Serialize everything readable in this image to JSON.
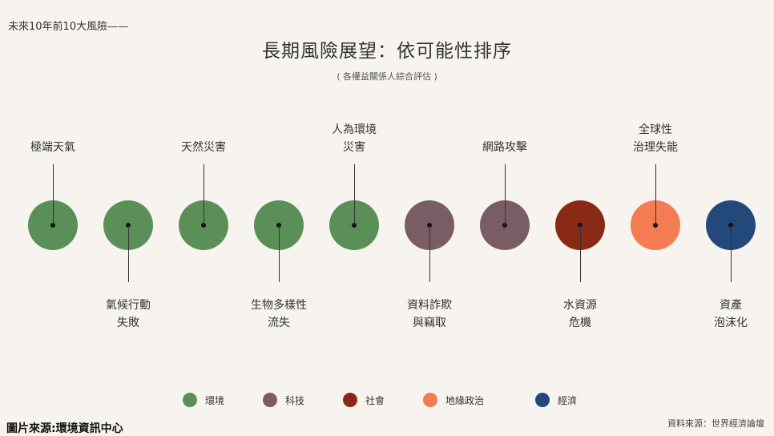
{
  "header": {
    "tag": "未來10年前10大風險——",
    "title": "長期風險展望：依可能性排序",
    "subtitle": "( 各權益關係人綜合評估 )"
  },
  "risks": [
    {
      "rank": 1,
      "label": [
        "極端天氣"
      ],
      "category": "環境",
      "color": "#5a8f58",
      "label_pos": "top"
    },
    {
      "rank": 2,
      "label": [
        "氣候行動",
        "失敗"
      ],
      "category": "環境",
      "color": "#5a8f58",
      "label_pos": "bottom"
    },
    {
      "rank": 3,
      "label": [
        "天然災害"
      ],
      "category": "環境",
      "color": "#5a8f58",
      "label_pos": "top"
    },
    {
      "rank": 4,
      "label": [
        "生物多樣性",
        "流失"
      ],
      "category": "環境",
      "color": "#5a8f58",
      "label_pos": "bottom"
    },
    {
      "rank": 5,
      "label": [
        "人為環境",
        "災害"
      ],
      "category": "環境",
      "color": "#5a8f58",
      "label_pos": "top"
    },
    {
      "rank": 6,
      "label": [
        "資料詐欺",
        "與竊取"
      ],
      "category": "科技",
      "color": "#7a5c65",
      "label_pos": "bottom"
    },
    {
      "rank": 7,
      "label": [
        "網路攻擊"
      ],
      "category": "科技",
      "color": "#7a5c65",
      "label_pos": "top"
    },
    {
      "rank": 8,
      "label": [
        "水資源",
        "危機"
      ],
      "category": "社會",
      "color": "#8b2a14",
      "label_pos": "bottom"
    },
    {
      "rank": 9,
      "label": [
        "全球性",
        "治理失能"
      ],
      "category": "地緣政治",
      "color": "#f47c52",
      "label_pos": "top"
    },
    {
      "rank": 10,
      "label": [
        "資產",
        "泡沫化"
      ],
      "category": "經濟",
      "color": "#22497a",
      "label_pos": "bottom"
    }
  ],
  "legend": [
    {
      "label": "環境",
      "color": "#5a8f58"
    },
    {
      "label": "科技",
      "color": "#7a5c65"
    },
    {
      "label": "社會",
      "color": "#8b2a14"
    },
    {
      "label": "地緣政治",
      "color": "#f47c52"
    },
    {
      "label": "經濟",
      "color": "#22497a"
    }
  ],
  "footer": {
    "source": "資料來源：世界經濟論壇",
    "credit": "圖片來源:環境資訊中心"
  }
}
